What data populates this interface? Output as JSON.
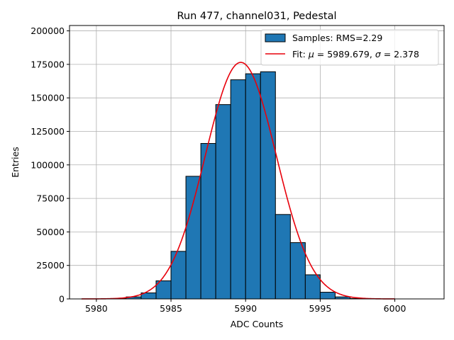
{
  "chart_data": {
    "type": "bar",
    "title": "Run 477, channel031, Pedestal",
    "xlabel": "ADC Counts",
    "ylabel": "Entries",
    "xlim": [
      5978.2,
      6003.3
    ],
    "ylim": [
      0,
      204000
    ],
    "x_ticks": [
      5980,
      5985,
      5990,
      5995,
      6000
    ],
    "y_ticks": [
      0,
      25000,
      50000,
      75000,
      100000,
      125000,
      150000,
      175000,
      200000
    ],
    "grid": true,
    "legend_position": "top-right",
    "histogram": {
      "name": "Samples: RMS=2.29",
      "color": "#1f77b4",
      "bin_width": 1,
      "bin_left_edges": [
        5981,
        5982,
        5983,
        5984,
        5985,
        5986,
        5987,
        5988,
        5989,
        5990,
        5991,
        5992,
        5993,
        5994,
        5995,
        5996,
        5997
      ],
      "values": [
        300,
        1500,
        4500,
        13500,
        35500,
        91500,
        116000,
        145000,
        163500,
        168000,
        169500,
        63000,
        42000,
        18000,
        5000,
        1500,
        300
      ]
    },
    "fit": {
      "name_prefix": "Fit: ",
      "mu_symbol": "μ",
      "mu_text": " = 5989.679, ",
      "sigma_symbol": "σ",
      "sigma_text": " = 2.378",
      "mu": 5989.679,
      "sigma": 2.378,
      "amplitude": 176500,
      "x_range": [
        5979,
        6000
      ],
      "color": "#e8000b"
    }
  }
}
